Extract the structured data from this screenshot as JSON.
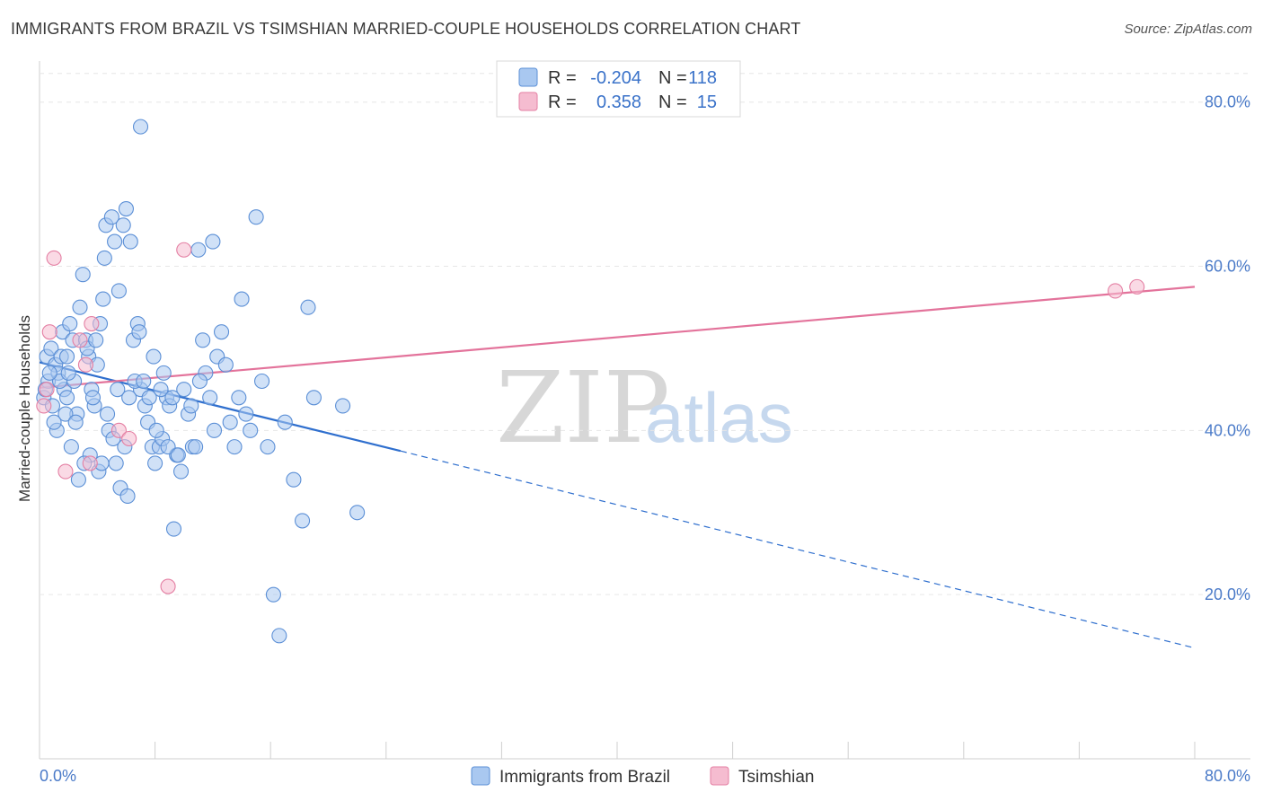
{
  "chart_data": {
    "type": "scatter",
    "title": "IMMIGRANTS FROM BRAZIL VS TSIMSHIAN MARRIED-COUPLE HOUSEHOLDS CORRELATION CHART",
    "source": "Source: ZipAtlas.com",
    "ylabel": "Married-couple Households",
    "xlim": [
      0,
      80
    ],
    "ylim": [
      0,
      85
    ],
    "x_tick_labels": [
      "0.0%",
      "80.0%"
    ],
    "y_ticks": [
      {
        "value": 20,
        "label": "20.0%"
      },
      {
        "value": 40,
        "label": "40.0%"
      },
      {
        "value": 60,
        "label": "60.0%"
      },
      {
        "value": 80,
        "label": "80.0%"
      }
    ],
    "watermark": {
      "zip": "ZIP",
      "atlas": "atlas"
    },
    "legend": [
      {
        "r_label": "R =",
        "r_value": "-0.204",
        "n_label": "N =",
        "n_value": "118"
      },
      {
        "r_label": "R =",
        "r_value": "0.358",
        "n_label": "N =",
        "n_value": "15"
      }
    ],
    "series": [
      {
        "name": "Immigrants from Brazil",
        "fill": "#a9c8f0",
        "stroke": "#5b8fd6",
        "line_color": "#2f6fce",
        "trend": {
          "x_start": 0,
          "y_start": 48.3,
          "x_solid_end": 25,
          "y_solid_end": 37.5,
          "x_end": 80,
          "y_end": 13.5
        },
        "points": [
          [
            7,
            77
          ],
          [
            0.5,
            49
          ],
          [
            0.6,
            46
          ],
          [
            0.3,
            44
          ],
          [
            0.4,
            45
          ],
          [
            0.8,
            50
          ],
          [
            1.1,
            48
          ],
          [
            1.3,
            47
          ],
          [
            1.5,
            49
          ],
          [
            1.7,
            45
          ],
          [
            0.9,
            43
          ],
          [
            1.2,
            40
          ],
          [
            1.6,
            52
          ],
          [
            1.9,
            44
          ],
          [
            2.1,
            53
          ],
          [
            2.3,
            51
          ],
          [
            2.4,
            46
          ],
          [
            2.6,
            42
          ],
          [
            2.8,
            55
          ],
          [
            3,
            59
          ],
          [
            3.2,
            51
          ],
          [
            3.4,
            49
          ],
          [
            3.6,
            45
          ],
          [
            3.8,
            43
          ],
          [
            4,
            48
          ],
          [
            4.2,
            53
          ],
          [
            4.4,
            56
          ],
          [
            4.5,
            61
          ],
          [
            4.6,
            65
          ],
          [
            5,
            66
          ],
          [
            5.2,
            63
          ],
          [
            5.5,
            57
          ],
          [
            5.8,
            65
          ],
          [
            6,
            67
          ],
          [
            6.3,
            63
          ],
          [
            6.5,
            51
          ],
          [
            6.8,
            53
          ],
          [
            7,
            45
          ],
          [
            7.3,
            43
          ],
          [
            7.5,
            41
          ],
          [
            7.8,
            38
          ],
          [
            8,
            36
          ],
          [
            8.3,
            38
          ],
          [
            8.5,
            39
          ],
          [
            8.8,
            44
          ],
          [
            9,
            43
          ],
          [
            9.3,
            28
          ],
          [
            9.5,
            37
          ],
          [
            9.8,
            35
          ],
          [
            10,
            45
          ],
          [
            10.3,
            42
          ],
          [
            10.6,
            38
          ],
          [
            11,
            62
          ],
          [
            11.3,
            51
          ],
          [
            11.5,
            47
          ],
          [
            11.8,
            44
          ],
          [
            12,
            63
          ],
          [
            12.3,
            49
          ],
          [
            12.6,
            52
          ],
          [
            12.9,
            48
          ],
          [
            13.2,
            41
          ],
          [
            13.5,
            38
          ],
          [
            13.8,
            44
          ],
          [
            14,
            56
          ],
          [
            14.3,
            42
          ],
          [
            14.6,
            40
          ],
          [
            15,
            66
          ],
          [
            15.4,
            46
          ],
          [
            15.8,
            38
          ],
          [
            16.2,
            20
          ],
          [
            16.6,
            15
          ],
          [
            17,
            41
          ],
          [
            17.6,
            34
          ],
          [
            18.2,
            29
          ],
          [
            18.6,
            55
          ],
          [
            19,
            44
          ],
          [
            21,
            43
          ],
          [
            22,
            30
          ],
          [
            3.5,
            37
          ],
          [
            4.1,
            35
          ],
          [
            4.8,
            40
          ],
          [
            5.3,
            36
          ],
          [
            5.6,
            33
          ],
          [
            6.1,
            32
          ],
          [
            2.2,
            38
          ],
          [
            2.7,
            34
          ],
          [
            3.1,
            36
          ],
          [
            1.4,
            46
          ],
          [
            1.8,
            42
          ],
          [
            2.5,
            41
          ],
          [
            4.3,
            36
          ],
          [
            5.1,
            39
          ],
          [
            5.9,
            38
          ],
          [
            6.6,
            46
          ],
          [
            7.2,
            46
          ],
          [
            7.6,
            44
          ],
          [
            8.1,
            40
          ],
          [
            8.4,
            45
          ],
          [
            8.9,
            38
          ],
          [
            9.6,
            37
          ],
          [
            10.8,
            38
          ],
          [
            11.1,
            46
          ],
          [
            12.1,
            40
          ],
          [
            0.7,
            47
          ],
          [
            1.0,
            41
          ],
          [
            1.9,
            49
          ],
          [
            2.0,
            47
          ],
          [
            3.3,
            50
          ],
          [
            3.7,
            44
          ],
          [
            3.9,
            51
          ],
          [
            4.7,
            42
          ],
          [
            5.4,
            45
          ],
          [
            6.2,
            44
          ],
          [
            6.9,
            52
          ],
          [
            7.9,
            49
          ],
          [
            8.6,
            47
          ],
          [
            9.2,
            44
          ],
          [
            10.5,
            43
          ]
        ]
      },
      {
        "name": "Tsimshian",
        "fill": "#f5bcd0",
        "stroke": "#e47fa3",
        "line_color": "#e3739b",
        "trend": {
          "x_start": 0,
          "y_start": 45.2,
          "x_solid_end": 80,
          "y_solid_end": 57.5,
          "x_end": 80,
          "y_end": 57.5
        },
        "points": [
          [
            1,
            61
          ],
          [
            0.7,
            52
          ],
          [
            0.5,
            45
          ],
          [
            0.3,
            43
          ],
          [
            2.8,
            51
          ],
          [
            3.2,
            48
          ],
          [
            3.6,
            53
          ],
          [
            1.8,
            35
          ],
          [
            5.5,
            40
          ],
          [
            6.2,
            39
          ],
          [
            8.9,
            21
          ],
          [
            10,
            62
          ],
          [
            3.5,
            36
          ],
          [
            74.5,
            57
          ],
          [
            76,
            57.5
          ]
        ]
      }
    ]
  }
}
